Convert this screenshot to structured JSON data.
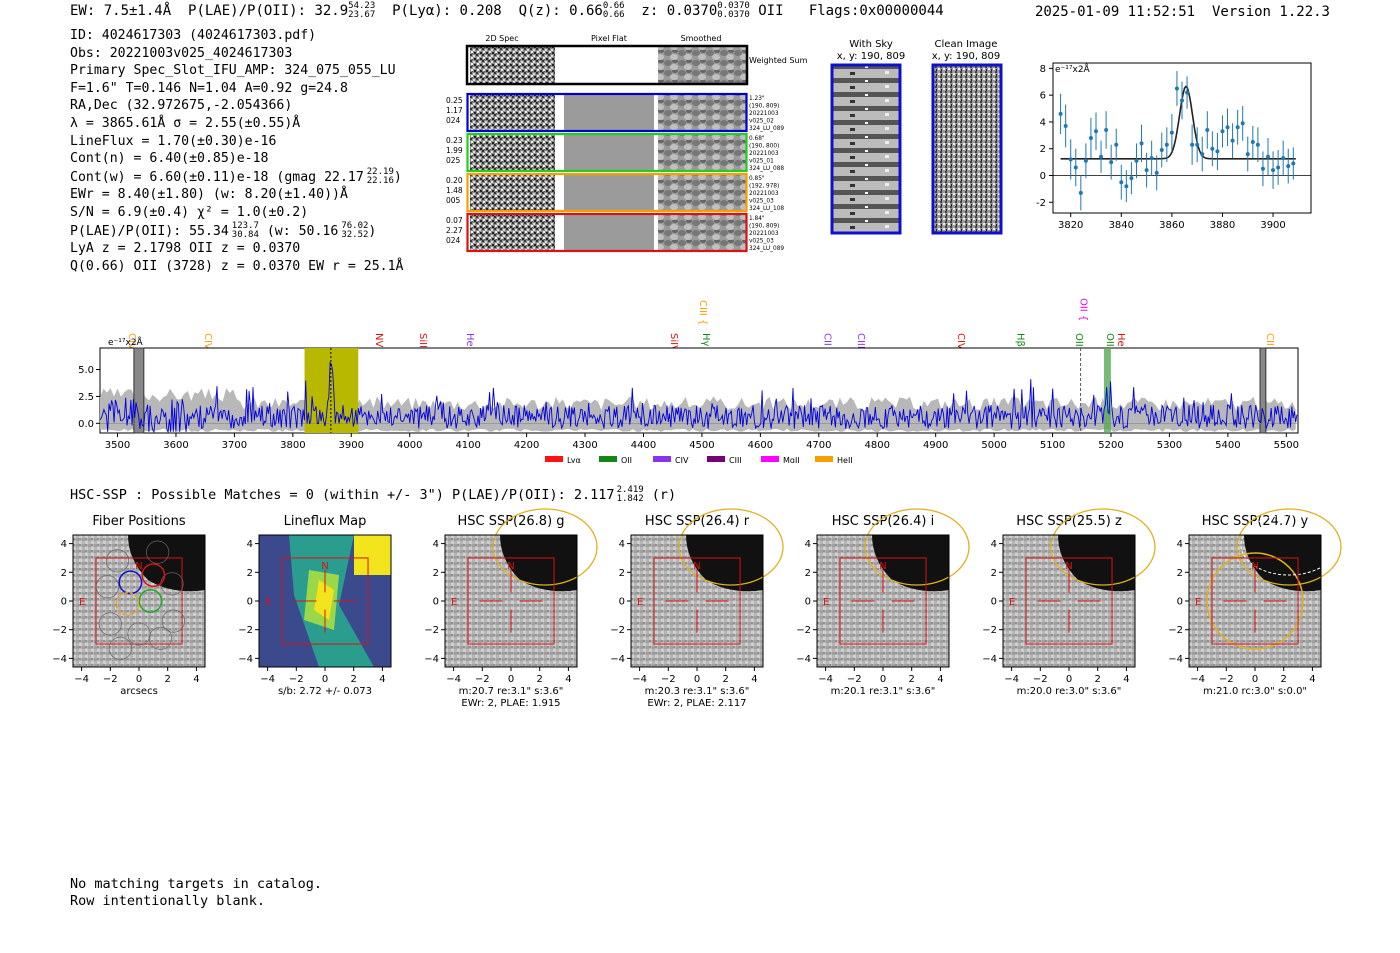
{
  "header": {
    "ew": "EW: 7.5±1.4Å",
    "plae_label": "P(LAE)/P(OII): 32.9",
    "plae_hi": "54.23",
    "plae_lo": "23.67",
    "plya": "P(Lyα): 0.208",
    "qz_label": "Q(z): 0.66",
    "qz_hi": "0.66",
    "qz_lo": "0.66",
    "z_label": "z: 0.0370",
    "z_hi": "0.0370",
    "z_lo": "0.0370",
    "z_line": "OII",
    "flags": "Flags:0x00000044",
    "timestamp": "2025-01-09 11:52:51",
    "version": "Version 1.22.3"
  },
  "info": {
    "id": "ID: 4024617303 (4024617303.pdf)",
    "obs": "Obs: 20221003v025_4024617303",
    "primary": "Primary Spec_Slot_IFU_AMP: 324_075_055_LU",
    "fiber": "F=1.6\"  T=0.146  N=1.04  A=0.92  g=24.8",
    "radec": "RA,Dec (32.972675,-2.054366)",
    "lambda": "λ = 3865.61Å  σ = 2.55(±0.55)Å",
    "lineflux": "LineFlux = 1.70(±0.30)e-16",
    "contn": "Cont(n) = 6.40(±0.85)e-18",
    "contw": "Cont(w) = 6.60(±0.11)e-18 (gmag 22.17",
    "contw_hi": "22.19",
    "contw_lo": "22.16",
    "ewr": "EWr = 8.40(±1.80) (w: 8.20(±1.40))Å",
    "sn": "S/N = 6.9(±0.4)  χ² = 1.0(±0.2)",
    "plae": "P(LAE)/P(OII): 55.34",
    "plae_hi": "123.7",
    "plae_lo": "30.84",
    "plae_w": "(w: 50.16",
    "plae_w_hi": "76.02",
    "plae_w_lo": "32.52",
    "lya_z": "LyA z = 2.1798   OII z = 0.0370",
    "q_line": "Q(0.66) OII (3728) z = 0.0370  EW r = 25.1Å"
  },
  "cutouts": {
    "col_headers": [
      "2D Spec",
      "Pixel Flat",
      "Smoothed"
    ],
    "weighted_label": "Weighted Sum",
    "rows": [
      {
        "vals": [
          "0.25",
          "1.17",
          "024"
        ],
        "notes": [
          "1.23\"",
          "(190, 809)",
          "20221003",
          "v025_02",
          "324_LU_089"
        ],
        "color": "#0000cc"
      },
      {
        "vals": [
          "0.23",
          "1.99",
          "025"
        ],
        "notes": [
          "0.68\"",
          "(190, 800)",
          "20221003",
          "v025_01",
          "324_LU_088"
        ],
        "color": "#22cc22"
      },
      {
        "vals": [
          "0.20",
          "1.48",
          "005"
        ],
        "notes": [
          "0.85\"",
          "(192, 978)",
          "20221003",
          "v025_03",
          "324_LU_108"
        ],
        "color": "#f5a000"
      },
      {
        "vals": [
          "0.07",
          "2.27",
          "024"
        ],
        "notes": [
          "1.84\"",
          "(190, 809)",
          "20221003",
          "v025_03",
          "324_LU_089"
        ],
        "color": "#dd1111"
      }
    ],
    "with_sky_title": "With Sky",
    "clean_title": "Clean Image",
    "xy_label": "x, y: 190, 809"
  },
  "line_fit": {
    "type": "scatter",
    "ylabel": "e⁻¹⁷x2Å",
    "xlim": [
      3813,
      3915
    ],
    "ylim": [
      -2.8,
      8.4
    ],
    "xticks": [
      3820,
      3840,
      3860,
      3880,
      3900
    ],
    "yticks": [
      -2,
      0,
      2,
      4,
      6,
      8
    ],
    "points": [
      [
        3816,
        4.6,
        1.5
      ],
      [
        3818,
        3.7,
        1.6
      ],
      [
        3820,
        1.2,
        1.5
      ],
      [
        3822,
        0.6,
        1.4
      ],
      [
        3824,
        -1.3,
        1.3
      ],
      [
        3826,
        1.1,
        1.3
      ],
      [
        3828,
        2.8,
        1.5
      ],
      [
        3830,
        3.3,
        1.4
      ],
      [
        3832,
        1.4,
        1.2
      ],
      [
        3834,
        3.4,
        1.4
      ],
      [
        3836,
        1.0,
        1.3
      ],
      [
        3838,
        2.3,
        1.2
      ],
      [
        3840,
        -0.5,
        1.3
      ],
      [
        3842,
        -0.8,
        1.2
      ],
      [
        3844,
        -0.2,
        1.2
      ],
      [
        3846,
        1.1,
        1.3
      ],
      [
        3848,
        2.4,
        1.4
      ],
      [
        3850,
        0.4,
        1.3
      ],
      [
        3852,
        1.3,
        1.3
      ],
      [
        3854,
        0.2,
        1.3
      ],
      [
        3856,
        1.9,
        1.3
      ],
      [
        3858,
        2.3,
        1.3
      ],
      [
        3860,
        3.2,
        1.4
      ],
      [
        3862,
        6.5,
        1.3
      ],
      [
        3864,
        5.6,
        1.4
      ],
      [
        3866,
        6.2,
        1.2
      ],
      [
        3868,
        2.3,
        1.5
      ],
      [
        3870,
        2.3,
        1.3
      ],
      [
        3872,
        1.6,
        1.3
      ],
      [
        3874,
        3.4,
        1.4
      ],
      [
        3876,
        2.0,
        1.3
      ],
      [
        3878,
        1.8,
        1.4
      ],
      [
        3880,
        3.3,
        1.2
      ],
      [
        3882,
        3.6,
        1.4
      ],
      [
        3884,
        2.6,
        1.3
      ],
      [
        3886,
        3.6,
        1.3
      ],
      [
        3888,
        3.9,
        1.3
      ],
      [
        3890,
        1.6,
        1.3
      ],
      [
        3892,
        2.5,
        1.2
      ],
      [
        3894,
        2.3,
        1.3
      ],
      [
        3896,
        0.5,
        1.3
      ],
      [
        3898,
        1.4,
        1.4
      ],
      [
        3900,
        0.4,
        1.4
      ],
      [
        3902,
        0.6,
        1.3
      ],
      [
        3904,
        1.3,
        1.3
      ],
      [
        3906,
        0.7,
        1.3
      ],
      [
        3908,
        0.9,
        1.2
      ]
    ],
    "model": {
      "continuum": 1.25,
      "amplitude": 5.4,
      "center": 3865.6,
      "sigma": 2.55
    }
  },
  "spectrum": {
    "type": "line",
    "ylabel": "e⁻¹⁷x2Å",
    "xlim": [
      3470,
      5520
    ],
    "ylim": [
      -0.9,
      7.0
    ],
    "xticks": [
      3500,
      3600,
      3700,
      3800,
      3900,
      4000,
      4100,
      4200,
      4300,
      4400,
      4500,
      4600,
      4700,
      4800,
      4900,
      5000,
      5100,
      5200,
      5300,
      5400,
      5500
    ],
    "yticks": [
      0.0,
      2.5,
      5.0
    ],
    "highlight_region": [
      3820,
      3912
    ],
    "emission_peak": 3865,
    "line_markers": [
      {
        "label": "CIV",
        "wave": 3520,
        "color": "#f5a000"
      },
      {
        "label": "CIV",
        "wave": 3650,
        "color": "#f5a000"
      },
      {
        "label": "NV",
        "wave": 3942,
        "color": "#dd1111"
      },
      {
        "label": "SiII",
        "wave": 4018,
        "color": "#dd1111"
      },
      {
        "label": "HeII",
        "wave": 4098,
        "color": "#8833ee"
      },
      {
        "label": "SiIV",
        "wave": 4447,
        "color": "#dd1111"
      },
      {
        "label": "CIII",
        "wave": 4497,
        "color": "#f5a000"
      },
      {
        "label": "Hγ",
        "wave": 4502,
        "color": "#118811"
      },
      {
        "label": "CII",
        "wave": 4710,
        "color": "#8833ee"
      },
      {
        "label": "CIII",
        "wave": 4767,
        "color": "#8833ee"
      },
      {
        "label": "CIV",
        "wave": 4938,
        "color": "#dd1111"
      },
      {
        "label": "Hβ",
        "wave": 5040,
        "color": "#118811"
      },
      {
        "label": "OIII",
        "wave": 5140,
        "color": "#118811"
      },
      {
        "label": "OII",
        "wave": 5148,
        "color": "#ee00ee"
      },
      {
        "label": "OIII",
        "wave": 5193,
        "color": "#118811"
      },
      {
        "label": "HeII",
        "wave": 5212,
        "color": "#dd1111"
      },
      {
        "label": "CII",
        "wave": 5467,
        "color": "#f5a000"
      }
    ],
    "legend": [
      {
        "label": "Lyα",
        "color": "#ff1111"
      },
      {
        "label": "OII",
        "color": "#118811"
      },
      {
        "label": "CIV",
        "color": "#8833ee"
      },
      {
        "label": "CIII",
        "color": "#770077"
      },
      {
        "label": "MgII",
        "color": "#ff00ff"
      },
      {
        "label": "HeII",
        "color": "#f5a000"
      }
    ]
  },
  "hsc": {
    "summary_label": "HSC-SSP : Possible Matches = 0 (within +/- 3\")  P(LAE)/P(OII): 2.117",
    "summary_hi": "2.419",
    "summary_lo": "1.842",
    "summary_band": "(r)",
    "axis_ticks": [
      -4,
      -2,
      0,
      2,
      4
    ],
    "panels": [
      {
        "title": "Fiber Positions",
        "captions": [
          "arcsecs"
        ]
      },
      {
        "title": "Lineflux Map",
        "captions": [
          "s/b: 2.72 +/- 0.073"
        ]
      },
      {
        "title": "HSC SSP(26.8) g",
        "captions": [
          "m:20.7  re:3.1\"  s:3.6\"",
          "EWr: 2, PLAE: 1.915"
        ]
      },
      {
        "title": "HSC SSP(26.4) r",
        "captions": [
          "m:20.3  re:3.1\"  s:3.6\"",
          "EWr: 2, PLAE: 2.117"
        ]
      },
      {
        "title": "HSC SSP(26.4) i",
        "captions": [
          "m:20.1  re:3.1\"  s:3.6\""
        ]
      },
      {
        "title": "HSC SSP(25.5) z",
        "captions": [
          "m:20.0  re:3.0\"  s:3.6\""
        ]
      },
      {
        "title": "HSC SSP(24.7) y",
        "captions": [
          "m:21.0  rc:3.0\"  s:0.0\""
        ]
      }
    ],
    "north": "N",
    "east": "E"
  },
  "footer": {
    "line1": "No matching targets in catalog.",
    "line2": "Row intentionally blank."
  }
}
